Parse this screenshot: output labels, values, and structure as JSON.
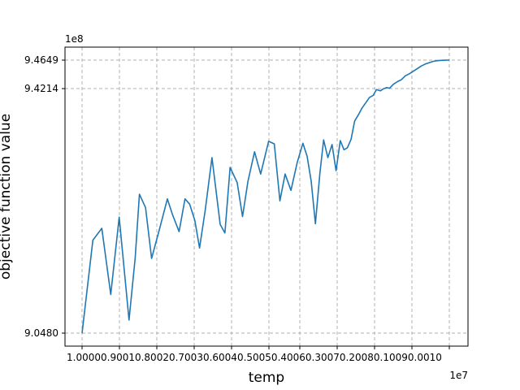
{
  "chart_data": {
    "type": "line",
    "title": "",
    "xlabel": "temp",
    "ylabel": "objective function value",
    "x_offset_label": "1e7",
    "y_offset_label": "1e8",
    "xlim": [
      0.1,
      1e-06
    ],
    "x_reversed": true,
    "ylim": [
      9.048,
      9.4649
    ],
    "grid": true,
    "grid_style": "dashed",
    "line_color": "#1f77b4",
    "x_ticks": [
      {
        "value": 0.1,
        "label": "1.0000"
      },
      {
        "value": 0.09,
        "label": "0.9001"
      },
      {
        "value": 0.081,
        "label": "0.8002"
      },
      {
        "value": 0.0729,
        "label": "0.7003"
      },
      {
        "value": 0.06561,
        "label": "0.6004"
      },
      {
        "value": 0.059049,
        "label": "0.5005"
      },
      {
        "value": 0.0531441,
        "label": "0.4006"
      },
      {
        "value": 0.04782969,
        "label": "0.3007"
      },
      {
        "value": 0.043046721,
        "label": "0.2008"
      },
      {
        "value": 0.038742049,
        "label": "0.1009"
      },
      {
        "value": 0.034867844,
        "label": "0.0010"
      }
    ],
    "x_tick_labels_text": "1.00000.90010.80020.70030.60040.50050.40060.30070.20080.10090.0010",
    "y_ticks": [
      {
        "value": 9.048,
        "label": "9.0480"
      },
      {
        "value": 9.4214,
        "label": "9.4214"
      },
      {
        "value": 9.4649,
        "label": "9.4649"
      }
    ],
    "series": [
      {
        "name": "",
        "points": [
          [
            0.0,
            9.048
          ],
          [
            0.046,
            9.19
          ],
          [
            0.084,
            9.208
          ],
          [
            0.122,
            9.107
          ],
          [
            0.158,
            9.225
          ],
          [
            0.2,
            9.068
          ],
          [
            0.226,
            9.163
          ],
          [
            0.244,
            9.26
          ],
          [
            0.27,
            9.24
          ],
          [
            0.296,
            9.162
          ],
          [
            0.328,
            9.205
          ],
          [
            0.363,
            9.253
          ],
          [
            0.384,
            9.23
          ],
          [
            0.413,
            9.203
          ],
          [
            0.438,
            9.253
          ],
          [
            0.458,
            9.245
          ],
          [
            0.48,
            9.22
          ],
          [
            0.5,
            9.178
          ],
          [
            0.524,
            9.235
          ],
          [
            0.553,
            9.316
          ],
          [
            0.588,
            9.214
          ],
          [
            0.608,
            9.201
          ],
          [
            0.63,
            9.301
          ],
          [
            0.66,
            9.278
          ],
          [
            0.683,
            9.226
          ],
          [
            0.706,
            9.28
          ],
          [
            0.734,
            9.325
          ],
          [
            0.76,
            9.291
          ],
          [
            0.794,
            9.341
          ],
          [
            0.818,
            9.337
          ],
          [
            0.842,
            9.25
          ],
          [
            0.864,
            9.291
          ],
          [
            0.889,
            9.266
          ],
          [
            0.916,
            9.309
          ],
          [
            0.94,
            9.338
          ],
          [
            0.958,
            9.318
          ],
          [
            0.975,
            9.28
          ],
          [
            0.993,
            9.215
          ],
          [
            1.012,
            9.292
          ],
          [
            1.028,
            9.343
          ],
          [
            1.046,
            9.316
          ],
          [
            1.064,
            9.336
          ],
          [
            1.081,
            9.296
          ],
          [
            1.099,
            9.342
          ],
          [
            1.115,
            9.328
          ],
          [
            1.129,
            9.331
          ],
          [
            1.145,
            9.344
          ],
          [
            1.16,
            9.372
          ],
          [
            1.177,
            9.382
          ],
          [
            1.192,
            9.392
          ],
          [
            1.208,
            9.4
          ],
          [
            1.223,
            9.408
          ],
          [
            1.239,
            9.411
          ],
          [
            1.253,
            9.42
          ],
          [
            1.269,
            9.418
          ],
          [
            1.282,
            9.421
          ],
          [
            1.297,
            9.423
          ],
          [
            1.309,
            9.422
          ],
          [
            1.325,
            9.428
          ],
          [
            1.342,
            9.432
          ],
          [
            1.359,
            9.435
          ],
          [
            1.376,
            9.441
          ],
          [
            1.393,
            9.444
          ],
          [
            1.41,
            9.448
          ],
          [
            1.427,
            9.452
          ],
          [
            1.444,
            9.456
          ],
          [
            1.461,
            9.459
          ],
          [
            1.478,
            9.461
          ],
          [
            1.495,
            9.463
          ],
          [
            1.512,
            9.464
          ],
          [
            1.529,
            9.4645
          ],
          [
            1.546,
            9.4648
          ],
          [
            1.563,
            9.4649
          ]
        ]
      }
    ]
  }
}
